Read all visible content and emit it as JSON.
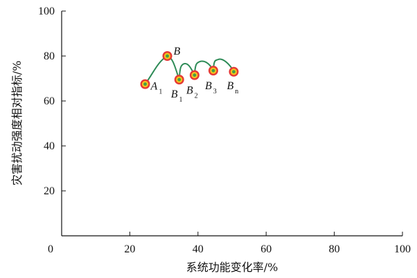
{
  "chart_data": {
    "type": "line",
    "xlabel": "系统功能变化率/%",
    "ylabel": "灾害扰动强度相对指标/%",
    "xlim": [
      0,
      100
    ],
    "ylim": [
      0,
      100
    ],
    "x_ticks": [
      "0",
      "20",
      "40",
      "60",
      "80",
      "100"
    ],
    "y_ticks": [
      "20",
      "40",
      "60",
      "80",
      "100"
    ],
    "grid": false,
    "points": [
      {
        "label": "A",
        "sub": "1",
        "x": 24.5,
        "y": 67.5
      },
      {
        "label": "B",
        "sub": "",
        "x": 31.0,
        "y": 80.0
      },
      {
        "label": "B",
        "sub": "1",
        "x": 34.5,
        "y": 69.5
      },
      {
        "label": "B",
        "sub": "2",
        "x": 39.0,
        "y": 71.5
      },
      {
        "label": "B",
        "sub": "3",
        "x": 44.5,
        "y": 73.5
      },
      {
        "label": "B",
        "sub": "n",
        "x": 50.5,
        "y": 73.0
      }
    ],
    "curve_peaks": [
      {
        "x": 35.8,
        "y": 76.5
      },
      {
        "x": 40.5,
        "y": 77.5
      },
      {
        "x": 46.0,
        "y": 78.5
      }
    ]
  },
  "colors": {
    "curve": "#2e8b57",
    "marker_outer": "#e53935",
    "marker_mid": "#f7c21c",
    "marker_inner": "#43a047",
    "axis": "#111111"
  }
}
